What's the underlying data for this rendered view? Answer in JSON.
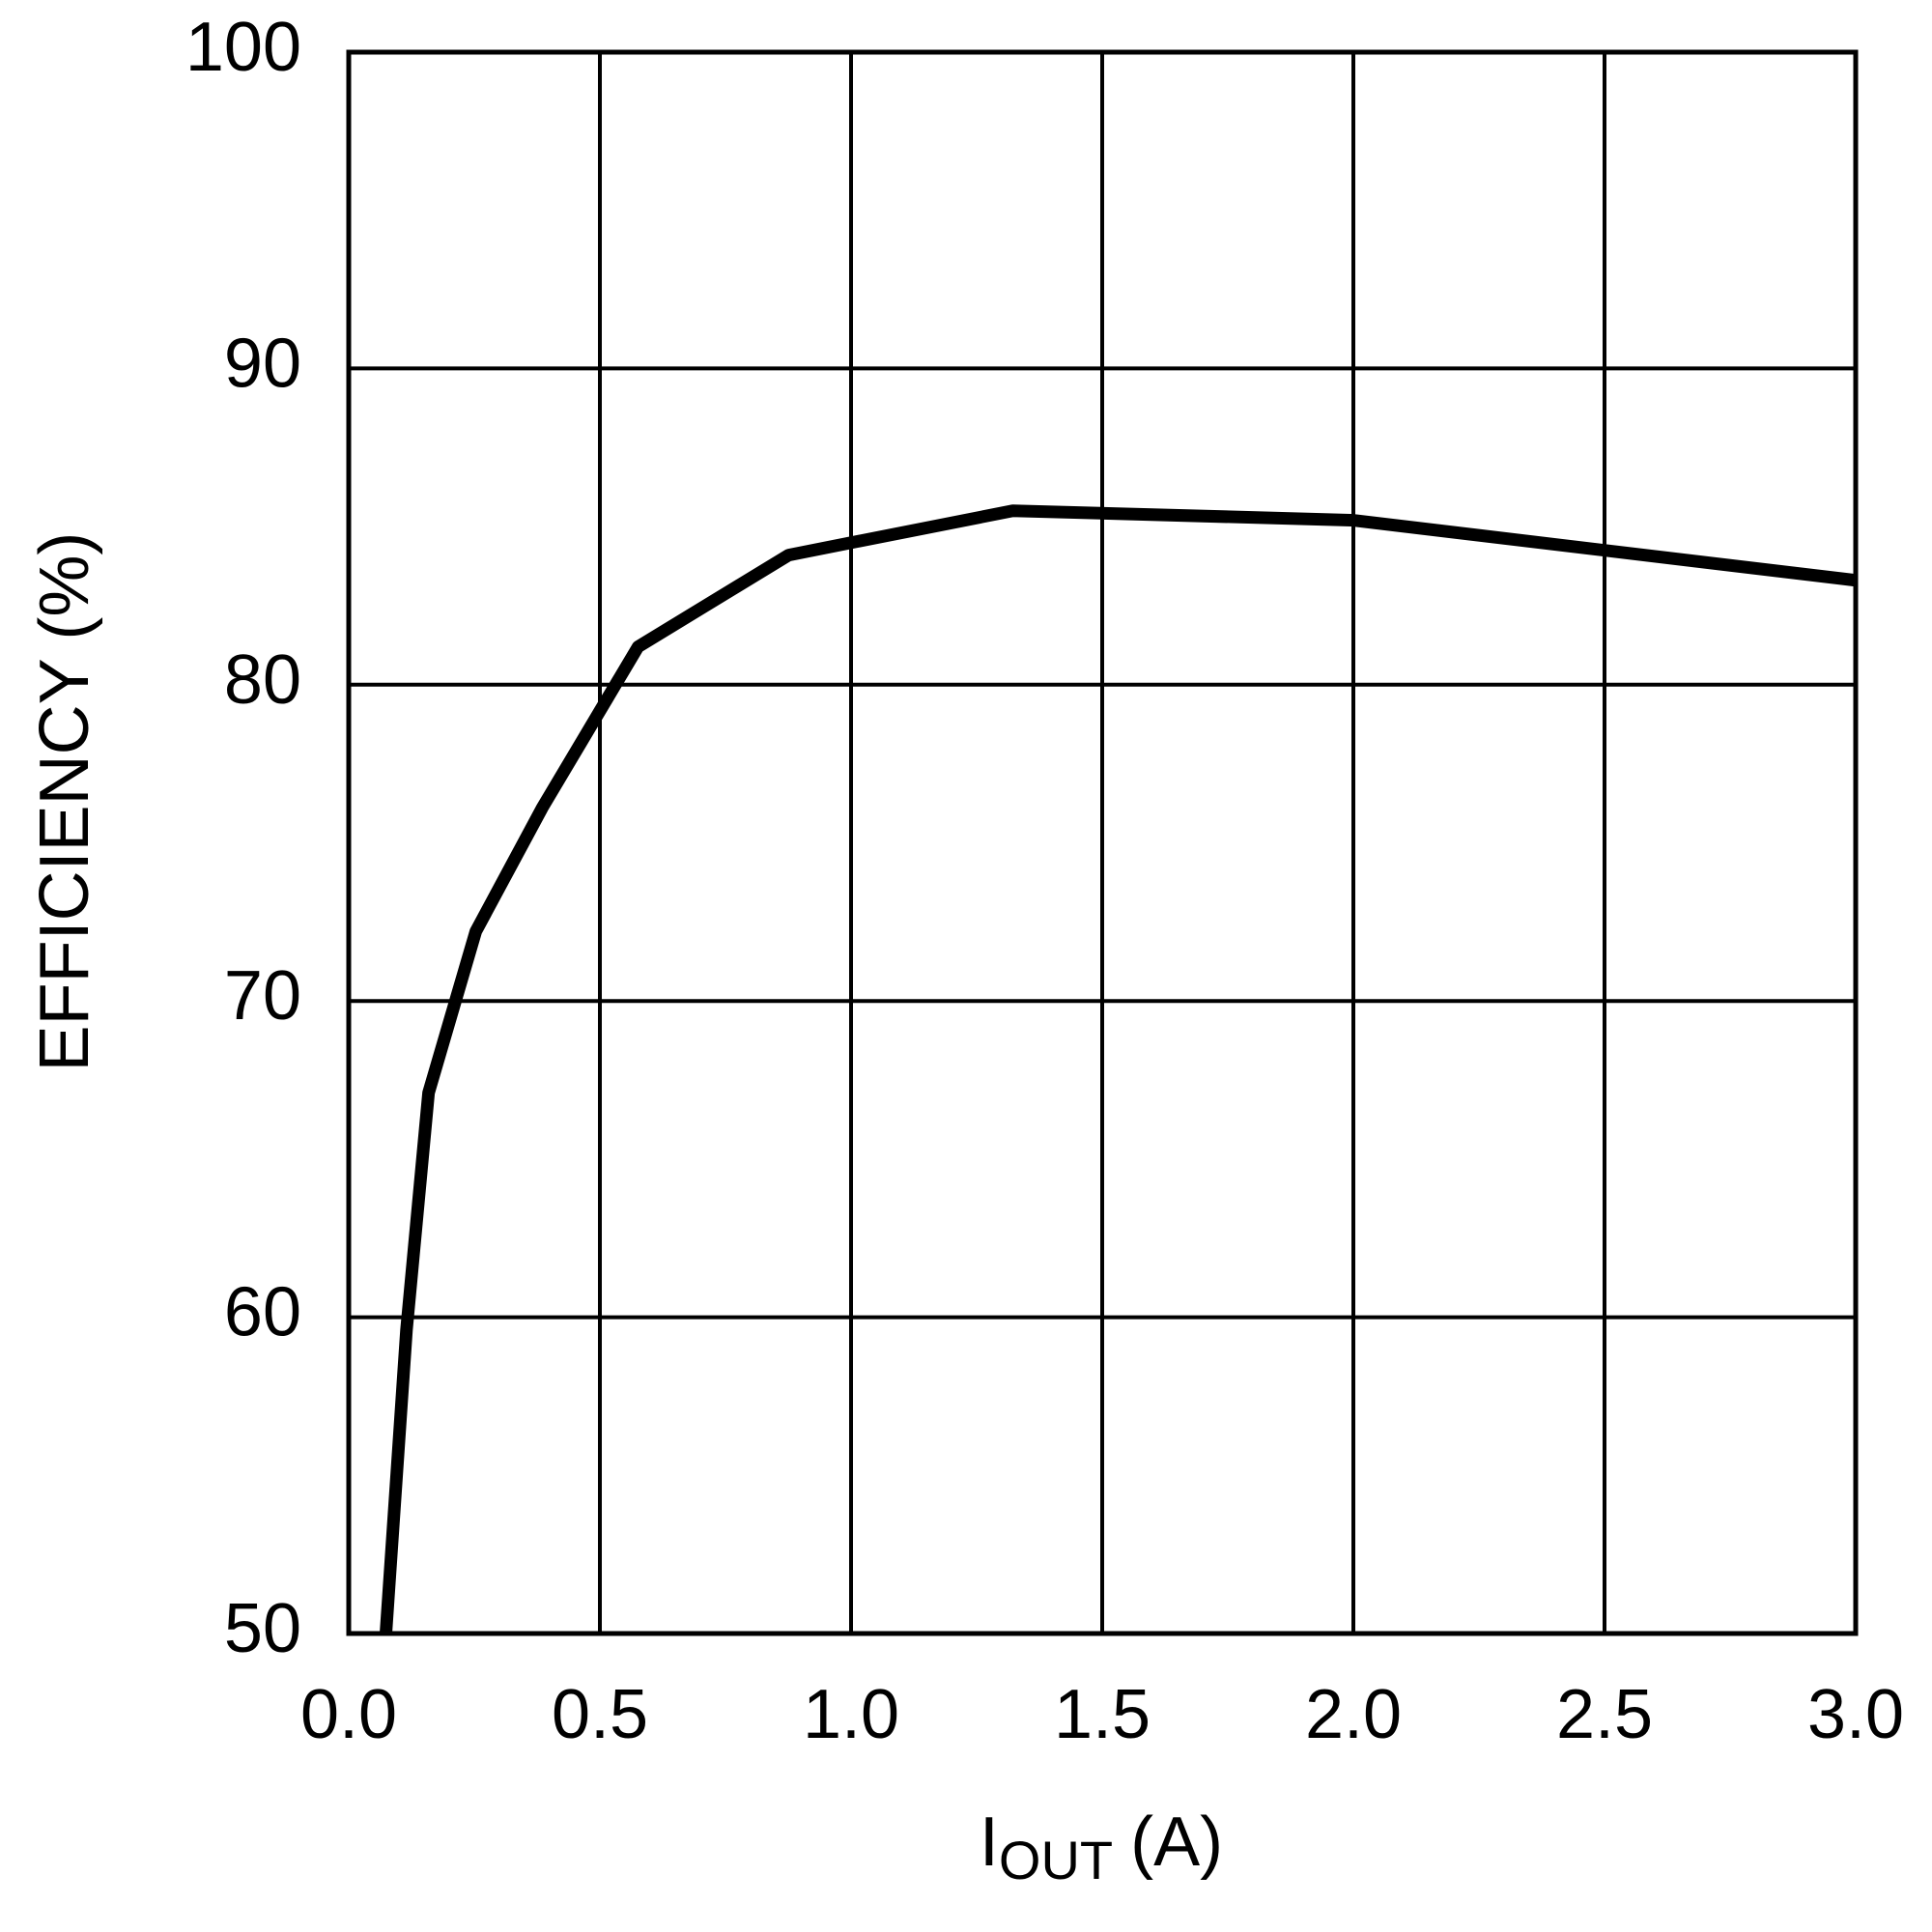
{
  "chart_data": {
    "type": "line",
    "ylabel": "EFFICIENCY (%)",
    "xlabel_main": "I",
    "xlabel_sub": "OUT",
    "xlabel_rest": "(A)",
    "x": [
      0.074,
      0.115,
      0.159,
      0.253,
      0.385,
      0.576,
      0.876,
      1.322,
      1.999,
      3.0
    ],
    "series": [
      {
        "color": "#000000",
        "values": [
          50,
          59.6,
          67.1,
          72.2,
          76.1,
          81.2,
          84.1,
          85.5,
          85.2,
          83.3
        ]
      }
    ],
    "xlim": [
      0,
      3
    ],
    "ylim": [
      50,
      100
    ],
    "xticks": [
      {
        "value": 0,
        "label": "0.0"
      },
      0.5,
      {
        "value": 1,
        "label": "1.0"
      },
      1.5,
      {
        "value": 2,
        "label": "2.0"
      },
      2.5,
      {
        "value": 3,
        "label": "3.0"
      }
    ],
    "yticks": [
      50,
      60,
      70,
      80,
      90,
      100
    ],
    "grid": true
  }
}
